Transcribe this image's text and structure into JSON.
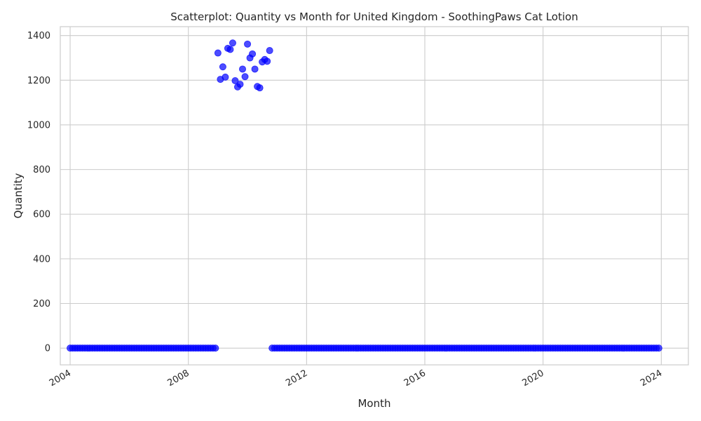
{
  "chart_data": {
    "type": "scatter",
    "title": "Scatterplot: Quantity vs Month for United Kingdom - SoothingPaws Cat Lotion",
    "xlabel": "Month",
    "ylabel": "Quantity",
    "xlim": [
      "2003-09-01",
      "2024-12-01"
    ],
    "ylim": [
      -75,
      1440
    ],
    "x_ticks": [
      "2004",
      "2008",
      "2012",
      "2016",
      "2020",
      "2024"
    ],
    "y_ticks": [
      0,
      200,
      400,
      600,
      800,
      1000,
      1200,
      1400
    ],
    "grid": true,
    "marker_color": "#0000ff",
    "background": "#ffffff",
    "grid_color": "#cccccc",
    "series": [
      {
        "zero_range": [
          "2004-01",
          "2008-12"
        ],
        "points": []
      },
      {
        "points": [
          [
            "2009-01",
            1322
          ],
          [
            "2009-02",
            1204
          ],
          [
            "2009-03",
            1260
          ],
          [
            "2009-04",
            1214
          ],
          [
            "2009-05",
            1343
          ],
          [
            "2009-06",
            1338
          ],
          [
            "2009-07",
            1367
          ],
          [
            "2009-08",
            1198
          ],
          [
            "2009-09",
            1170
          ],
          [
            "2009-10",
            1182
          ],
          [
            "2009-11",
            1250
          ],
          [
            "2009-12",
            1216
          ],
          [
            "2010-01",
            1362
          ],
          [
            "2010-02",
            1300
          ],
          [
            "2010-03",
            1318
          ],
          [
            "2010-04",
            1250
          ],
          [
            "2010-05",
            1172
          ],
          [
            "2010-06",
            1166
          ],
          [
            "2010-07",
            1282
          ],
          [
            "2010-08",
            1293
          ],
          [
            "2010-09",
            1285
          ],
          [
            "2010-10",
            1333
          ]
        ]
      },
      {
        "zero_range": [
          "2010-11",
          "2023-12"
        ],
        "points": []
      }
    ]
  }
}
